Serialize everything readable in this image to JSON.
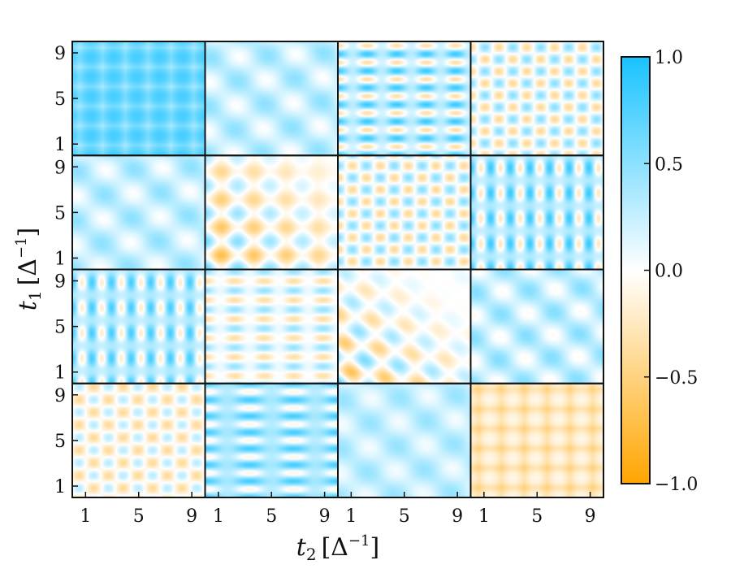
{
  "chart_data": {
    "type": "heatmap",
    "layout": {
      "rows": 4,
      "cols": 4
    },
    "xlabel": {
      "var": "t",
      "sub": "2",
      "unit_open": "[Δ",
      "unit_sup": "−1",
      "unit_close": "]"
    },
    "ylabel": {
      "var": "t",
      "sub": "1",
      "unit_open": "[Δ",
      "unit_sup": "−1",
      "unit_close": "]"
    },
    "x_ticks": [
      "1",
      "5",
      "9"
    ],
    "x_tick_values": [
      1,
      5,
      9
    ],
    "y_ticks": [
      "1",
      "5",
      "9"
    ],
    "y_tick_values": [
      1,
      5,
      9
    ],
    "xlim": [
      0,
      10
    ],
    "ylim": [
      0,
      10
    ],
    "colorbar": {
      "range": [
        -1.0,
        1.0
      ],
      "ticks": [
        {
          "value": 1.0,
          "label": "1.0"
        },
        {
          "value": 0.5,
          "label": "0.5"
        },
        {
          "value": 0.0,
          "label": "0.0"
        },
        {
          "value": -0.5,
          "label": "−0.5"
        },
        {
          "value": -1.0,
          "label": "−1.0"
        }
      ],
      "colors": {
        "max": "#19c3ff",
        "mid": "#ffffff",
        "min": "#ffa500"
      }
    },
    "panels": [
      {
        "kind": "grid",
        "base": 0.45,
        "amp": 0.45,
        "fx": 0.58,
        "fy": 0.58,
        "px": 0.3,
        "py": 0.0
      },
      {
        "kind": "diag",
        "base": 0.25,
        "amp": 0.3,
        "fx": 0.7,
        "fy": 0.7,
        "px": 0,
        "py": 0
      },
      {
        "kind": "stripes",
        "base": 0.25,
        "amp": 0.6,
        "fx": 0.9,
        "fy": 1.35,
        "px": 0,
        "py": 0
      },
      {
        "kind": "cells",
        "base": 0.05,
        "amp": 0.45,
        "fx": 0.95,
        "fy": 0.95,
        "px": 0,
        "py": 0
      },
      {
        "kind": "diag",
        "base": 0.25,
        "amp": 0.3,
        "fx": 0.7,
        "fy": 0.7,
        "px": 0,
        "py": 0
      },
      {
        "kind": "cells_diag",
        "base": -0.05,
        "amp": 0.7,
        "fx": 0.95,
        "fy": 0.95,
        "px": 0,
        "py": 0
      },
      {
        "kind": "cells",
        "base": 0.05,
        "amp": 0.45,
        "fx": 0.95,
        "fy": 0.95,
        "px": 1.0,
        "py": 0.4
      },
      {
        "kind": "vstripes",
        "base": 0.3,
        "amp": 0.55,
        "fx": 1.35,
        "fy": 0.9,
        "px": 0,
        "py": 0
      },
      {
        "kind": "vstripes",
        "base": 0.3,
        "amp": 0.5,
        "fx": 1.35,
        "fy": 0.9,
        "px": 0,
        "py": 0
      },
      {
        "kind": "stripes",
        "base": 0.05,
        "amp": 0.4,
        "fx": 0.9,
        "fy": 1.2,
        "px": 0.6,
        "py": 0
      },
      {
        "kind": "diag_strong",
        "base": 0.0,
        "amp": 0.75,
        "fx": 0.95,
        "fy": 0.95,
        "px": 0,
        "py": 0
      },
      {
        "kind": "diag",
        "base": 0.25,
        "amp": 0.35,
        "fx": 0.75,
        "fy": 0.75,
        "px": 0,
        "py": 0
      },
      {
        "kind": "cells",
        "base": -0.05,
        "amp": 0.35,
        "fx": 0.9,
        "fy": 0.9,
        "px": 0.6,
        "py": 0.3
      },
      {
        "kind": "stripes",
        "base": 0.35,
        "amp": 0.45,
        "fx": 0.6,
        "fy": 1.4,
        "px": 0,
        "py": 0
      },
      {
        "kind": "diag",
        "base": 0.25,
        "amp": 0.25,
        "fx": 0.7,
        "fy": 0.7,
        "px": 0,
        "py": 0
      },
      {
        "kind": "grid",
        "base": -0.45,
        "amp": 0.45,
        "fx": 0.58,
        "fy": 0.58,
        "px": 0.3,
        "py": 0.0
      }
    ]
  }
}
